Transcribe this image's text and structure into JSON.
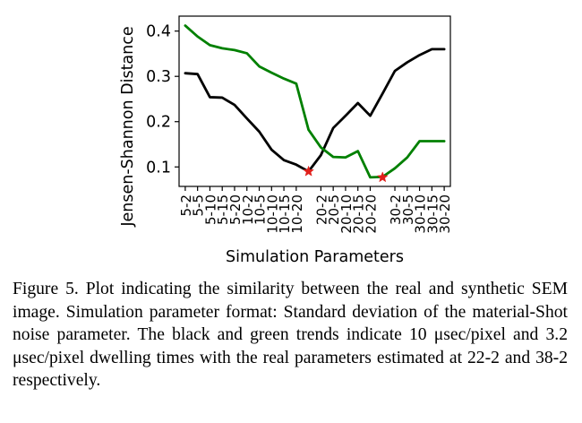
{
  "chart_data": {
    "type": "line",
    "categories": [
      "5-2",
      "5-5",
      "5-10",
      "5-15",
      "5-20",
      "10-2",
      "10-5",
      "10-10",
      "10-15",
      "10-20",
      "20-2",
      "20-5",
      "20-10",
      "20-15",
      "20-20",
      "30-2",
      "30-5",
      "30-10",
      "30-15",
      "30-20"
    ],
    "category_positions": [
      0,
      1,
      2,
      3,
      4,
      5,
      6,
      7,
      8,
      9,
      11,
      12,
      13,
      14,
      15,
      17,
      18,
      19,
      20,
      21
    ],
    "series": [
      {
        "color": "#000000",
        "x": [
          0,
          1,
          2,
          3,
          4,
          5,
          6,
          7,
          8,
          9,
          10,
          11,
          12,
          13,
          14,
          15,
          16,
          17,
          18,
          19,
          20,
          21
        ],
        "values": [
          0.307,
          0.305,
          0.254,
          0.253,
          0.237,
          0.207,
          0.178,
          0.138,
          0.115,
          0.105,
          0.09,
          0.126,
          0.186,
          0.213,
          0.241,
          0.213,
          0.262,
          0.312,
          0.331,
          0.347,
          0.36,
          0.36
        ]
      },
      {
        "color": "#008000",
        "x": [
          0,
          1,
          2,
          3,
          4,
          5,
          6,
          7,
          8,
          9,
          10,
          11,
          12,
          13,
          14,
          15,
          16,
          17,
          18,
          19,
          20,
          21
        ],
        "values": [
          0.412,
          0.388,
          0.369,
          0.362,
          0.358,
          0.351,
          0.322,
          0.308,
          0.295,
          0.284,
          0.182,
          0.143,
          0.122,
          0.121,
          0.135,
          0.077,
          0.078,
          0.097,
          0.121,
          0.157,
          0.157,
          0.157
        ]
      }
    ],
    "markers": [
      {
        "x": 10,
        "y": 0.09,
        "color": "#e0201b"
      },
      {
        "x": 16,
        "y": 0.077,
        "color": "#e0201b"
      }
    ],
    "yticks": [
      "0.1",
      "0.2",
      "0.3",
      "0.4"
    ],
    "ytick_values": [
      0.1,
      0.2,
      0.3,
      0.4
    ],
    "ylim": [
      0.057,
      0.433
    ],
    "xlim": [
      -0.5,
      21.5
    ],
    "xlabel": "Simulation Parameters",
    "ylabel": "Jensen-Shannon Distance",
    "grid": false
  },
  "caption": "Figure 5. Plot indicating the similarity between the real and synthetic SEM image. Simulation parameter format: Standard deviation of the material-Shot noise parameter. The black and green trends indicate 10 μsec/pixel and 3.2 μsec/pixel dwelling times with the real parameters estimated at 22-2 and 38-2 respectively."
}
